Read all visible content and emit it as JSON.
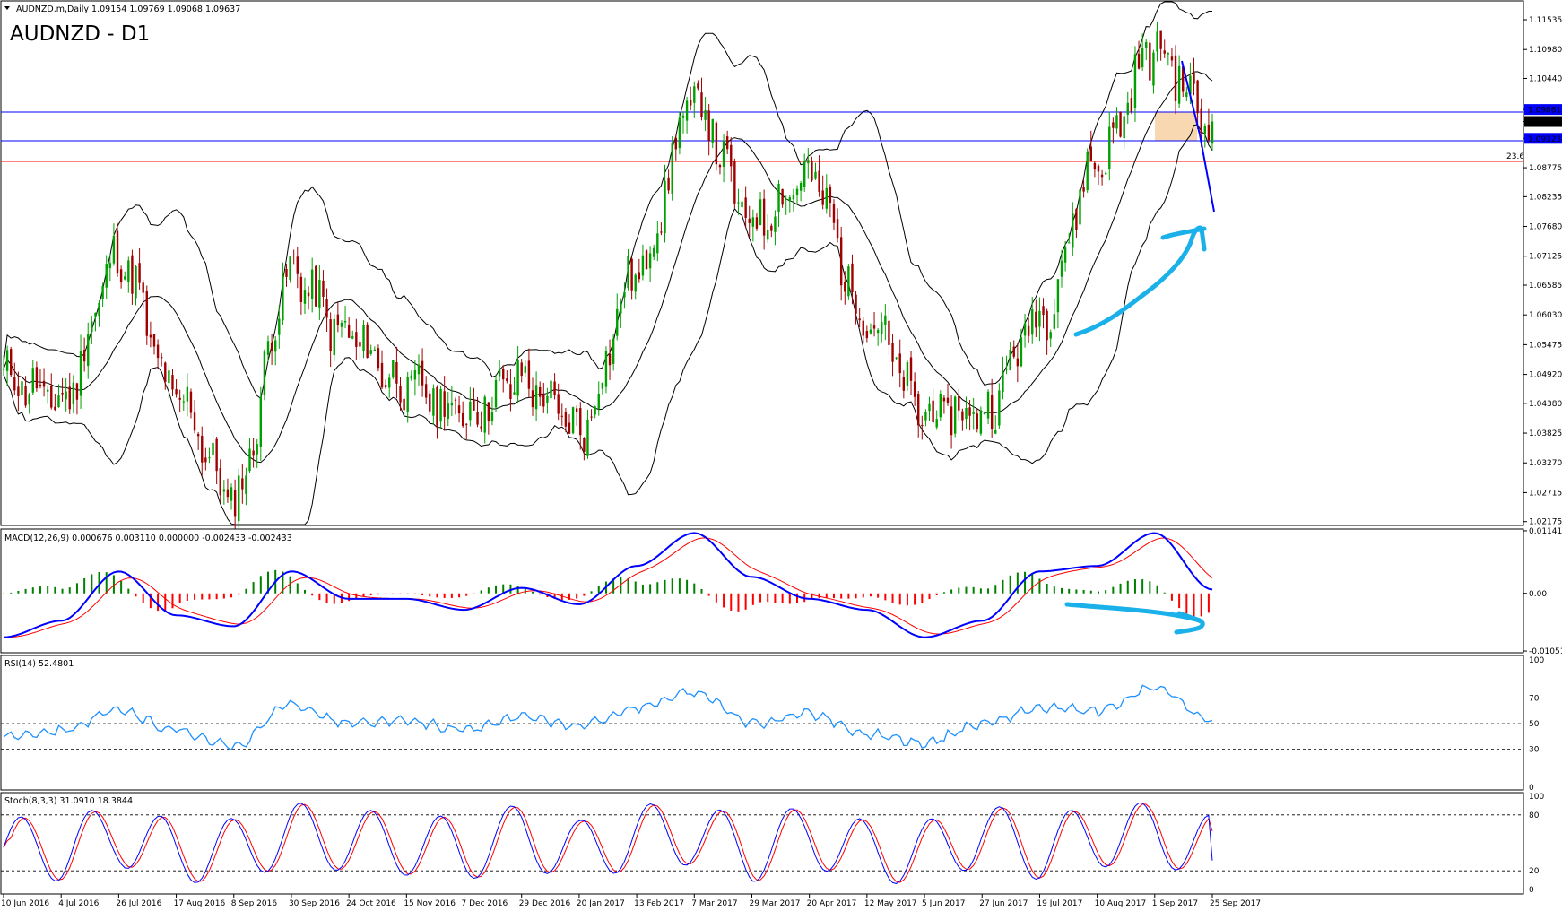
{
  "header": {
    "symbol_line": "AUDNZD.m,Daily  1.09154 1.09769 1.09068 1.09637",
    "chart_title": "AUDNZD - D1"
  },
  "price_axis": {
    "ticks": [
      "1.11535",
      "1.10980",
      "1.10440",
      "1.09861",
      "1.09637",
      "1.09323",
      "1.08775",
      "1.08235",
      "1.07680",
      "1.07125",
      "1.06585",
      "1.06030",
      "1.05475",
      "1.04920",
      "1.04380",
      "1.03825",
      "1.03270",
      "1.02715",
      "1.02175"
    ],
    "range": [
      1.0212,
      1.1187
    ]
  },
  "levels": {
    "resistance": {
      "value": 1.09861,
      "label": "1.09861",
      "color": "#0000ff"
    },
    "support": {
      "value": 1.09323,
      "label": "1.09323",
      "color": "#0000ff"
    },
    "current": {
      "value": 1.09637,
      "label": "1.09637"
    },
    "fib": {
      "value": 1.0898,
      "label": "23.6",
      "color": "#ff0000"
    }
  },
  "macd": {
    "label": "MACD(12,26,9) 0.000676 0.003110 0.000000 -0.002433 -0.002433",
    "ticks": [
      "0.01141",
      "0.00",
      "-0.01051"
    ]
  },
  "rsi": {
    "label": "RSI(14) 52.4801",
    "ticks": [
      "100",
      "70",
      "50",
      "30",
      "0"
    ],
    "levels": [
      70,
      50,
      30
    ]
  },
  "stoch": {
    "label": "Stoch(8,3,3) 31.0910 18.3844",
    "ticks": [
      "100",
      "80",
      "20",
      "0"
    ],
    "levels": [
      80,
      20
    ]
  },
  "time_axis": {
    "labels": [
      "10 Jun 2016",
      "4 Jul 2016",
      "26 Jul 2016",
      "17 Aug 2016",
      "8 Sep 2016",
      "30 Sep 2016",
      "24 Oct 2016",
      "15 Nov 2016",
      "7 Dec 2016",
      "29 Dec 2016",
      "20 Jan 2017",
      "13 Feb 2017",
      "7 Mar 2017",
      "29 Mar 2017",
      "20 Apr 2017",
      "12 May 2017",
      "5 Jun 2017",
      "27 Jun 2017",
      "19 Jul 2017",
      "10 Aug 2017",
      "1 Sep 2017",
      "25 Sep 2017"
    ]
  },
  "colors": {
    "bull_candle": "#00a000",
    "bear_candle": "#a00000",
    "bands": "#000000",
    "macd_pos": "#008000",
    "macd_neg": "#ff0000",
    "macd_main": "#0000ff",
    "macd_signal": "#ff0000",
    "rsi_line": "#1e90ff",
    "stoch_main": "#0000ff",
    "stoch_signal": "#ff0000",
    "annotation": "#1ab0ea",
    "zone": "#f8d8b0"
  },
  "chart_data": [
    {
      "type": "line",
      "name": "price",
      "x": [
        "10 Jun 2016",
        "4 Jul 2016",
        "26 Jul 2016",
        "17 Aug 2016",
        "8 Sep 2016",
        "30 Sep 2016",
        "24 Oct 2016",
        "15 Nov 2016",
        "7 Dec 2016",
        "29 Dec 2016",
        "20 Jan 2017",
        "13 Feb 2017",
        "7 Mar 2017",
        "29 Mar 2017",
        "20 Apr 2017",
        "12 May 2017",
        "5 Jun 2017",
        "27 Jun 2017",
        "19 Jul 2017",
        "10 Aug 2017",
        "1 Sep 2017",
        "25 Sep 2017"
      ],
      "y": [
        1.049,
        1.044,
        1.071,
        1.045,
        1.026,
        1.068,
        1.056,
        1.047,
        1.042,
        1.048,
        1.039,
        1.068,
        1.1,
        1.078,
        1.086,
        1.06,
        1.042,
        1.042,
        1.06,
        1.089,
        1.11,
        1.0964
      ],
      "ylim": [
        1.0212,
        1.1187
      ]
    },
    {
      "type": "line",
      "name": "macd",
      "x": [
        "10 Jun 2016",
        "4 Jul 2016",
        "26 Jul 2016",
        "17 Aug 2016",
        "8 Sep 2016",
        "30 Sep 2016",
        "24 Oct 2016",
        "15 Nov 2016",
        "7 Dec 2016",
        "29 Dec 2016",
        "20 Jan 2017",
        "13 Feb 2017",
        "7 Mar 2017",
        "29 Mar 2017",
        "20 Apr 2017",
        "12 May 2017",
        "5 Jun 2017",
        "27 Jun 2017",
        "19 Jul 2017",
        "10 Aug 2017",
        "1 Sep 2017",
        "25 Sep 2017"
      ],
      "y": [
        -0.008,
        -0.005,
        0.004,
        -0.004,
        -0.006,
        0.004,
        -0.001,
        -0.001,
        -0.003,
        0.001,
        -0.002,
        0.005,
        0.011,
        0.003,
        -0.001,
        -0.003,
        -0.008,
        -0.005,
        0.004,
        0.005,
        0.011,
        0.0007
      ],
      "ylim": [
        -0.0105,
        0.0114
      ]
    },
    {
      "type": "line",
      "name": "rsi",
      "x": [
        "10 Jun 2016",
        "4 Jul 2016",
        "26 Jul 2016",
        "17 Aug 2016",
        "8 Sep 2016",
        "30 Sep 2016",
        "24 Oct 2016",
        "15 Nov 2016",
        "7 Dec 2016",
        "29 Dec 2016",
        "20 Jan 2017",
        "13 Feb 2017",
        "7 Mar 2017",
        "29 Mar 2017",
        "20 Apr 2017",
        "12 May 2017",
        "5 Jun 2017",
        "27 Jun 2017",
        "19 Jul 2017",
        "10 Aug 2017",
        "1 Sep 2017",
        "25 Sep 2017"
      ],
      "y": [
        40,
        45,
        60,
        45,
        32,
        65,
        50,
        52,
        45,
        55,
        48,
        62,
        75,
        50,
        58,
        42,
        35,
        50,
        62,
        60,
        78,
        52.48
      ],
      "ylim": [
        0,
        100
      ]
    },
    {
      "type": "line",
      "name": "stoch",
      "x": [
        "10 Jun 2016",
        "4 Jul 2016",
        "26 Jul 2016",
        "17 Aug 2016",
        "8 Sep 2016",
        "30 Sep 2016",
        "24 Oct 2016",
        "15 Nov 2016",
        "7 Dec 2016",
        "29 Dec 2016",
        "20 Jan 2017",
        "13 Feb 2017",
        "7 Mar 2017",
        "29 Mar 2017",
        "20 Apr 2017",
        "12 May 2017",
        "5 Jun 2017",
        "27 Jun 2017",
        "19 Jul 2017",
        "10 Aug 2017",
        "1 Sep 2017",
        "25 Sep 2017"
      ],
      "y": [
        30,
        20,
        85,
        10,
        20,
        90,
        60,
        45,
        20,
        85,
        10,
        80,
        90,
        15,
        85,
        10,
        10,
        90,
        25,
        80,
        90,
        31.09
      ],
      "ylim": [
        0,
        100
      ]
    }
  ]
}
